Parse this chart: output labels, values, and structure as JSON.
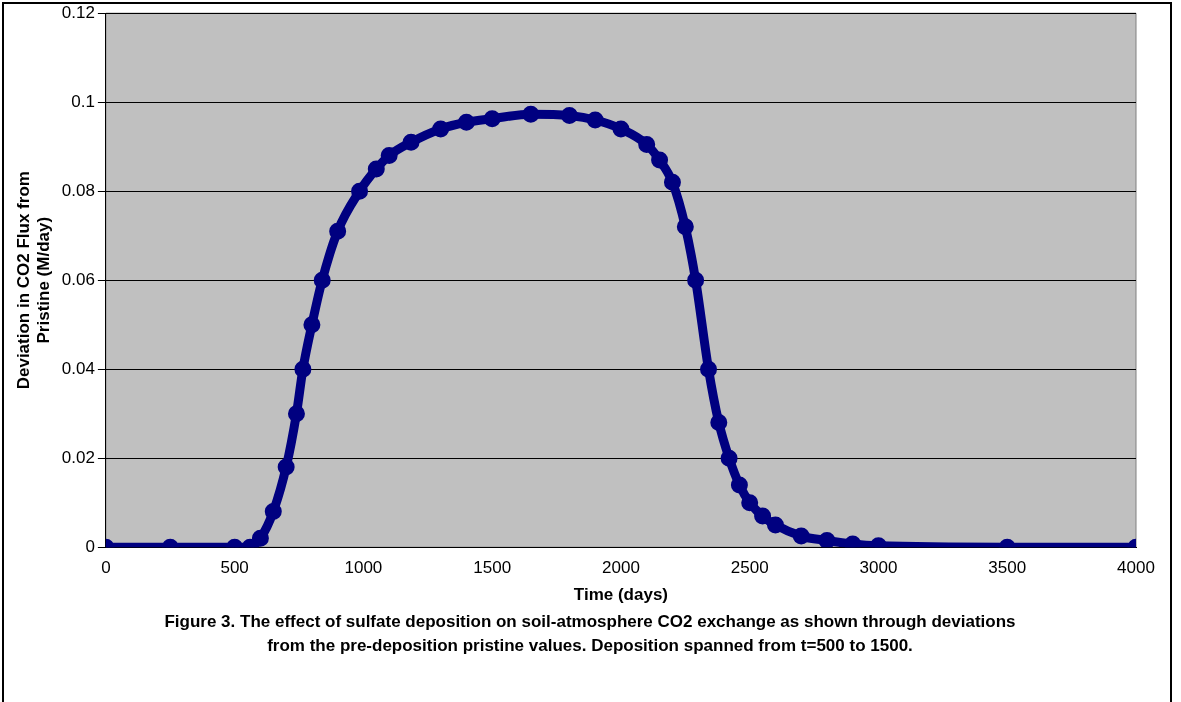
{
  "chart_data": {
    "type": "line",
    "xlabel": "Time (days)",
    "ylabel": "Deviation in CO2 Flux from Pristine (M/day)",
    "annotations": [
      "Figure 3. The effect of sulfate deposition on soil-atmosphere CO2 exchange as shown through deviations from the pre-deposition pristine values.  Deposition spanned from t=500 to 1500."
    ],
    "series": [
      {
        "color": "#000080",
        "x": [
          0,
          250,
          500,
          560,
          600,
          650,
          700,
          740,
          765,
          800,
          840,
          900,
          985,
          1050,
          1100,
          1185,
          1300,
          1400,
          1500,
          1650,
          1800,
          1900,
          2000,
          2100,
          2150,
          2200,
          2250,
          2290,
          2340,
          2380,
          2420,
          2460,
          2500,
          2550,
          2600,
          2700,
          2800,
          2900,
          3000,
          3500,
          4000
        ],
        "values": [
          0,
          0,
          0,
          0,
          0.002,
          0.008,
          0.018,
          0.03,
          0.04,
          0.05,
          0.06,
          0.071,
          0.08,
          0.085,
          0.088,
          0.091,
          0.094,
          0.0955,
          0.0963,
          0.0973,
          0.097,
          0.096,
          0.094,
          0.0905,
          0.087,
          0.082,
          0.072,
          0.06,
          0.04,
          0.028,
          0.02,
          0.014,
          0.01,
          0.007,
          0.005,
          0.0025,
          0.0015,
          0.0007,
          0.0003,
          0,
          0
        ]
      }
    ],
    "xlim": [
      0,
      4000
    ],
    "xticks": [
      0,
      500,
      1000,
      1500,
      2000,
      2500,
      3000,
      3500,
      4000
    ],
    "ylim": [
      0,
      0.12
    ],
    "yticks": [
      0,
      0.02,
      0.04,
      0.06,
      0.08,
      0.1,
      0.12
    ],
    "grid": "y",
    "legend": false,
    "marker": "circle",
    "line_style": "solid"
  }
}
